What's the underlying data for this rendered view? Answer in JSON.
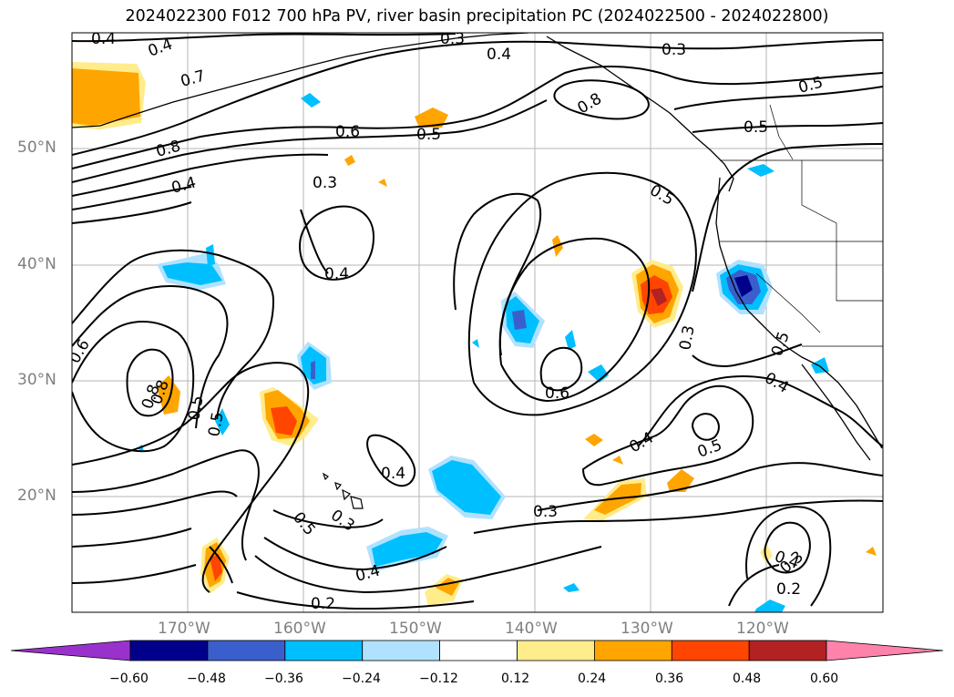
{
  "title": "2024022300 F012 700 hPa PV, river basin precipitation PC (2024022500 - 2024022800)",
  "latitude_labels": [
    "50°N",
    "40°N",
    "30°N",
    "20°N"
  ],
  "longitude_labels": [
    "170°W",
    "160°W",
    "150°W",
    "140°W",
    "130°W",
    "120°W"
  ],
  "contour_labels": [
    "0.4",
    "0.4",
    "0.3",
    "0.4",
    "0.3",
    "0.7",
    "0.8",
    "0.5",
    "0.6",
    "0.5",
    "0.5",
    "0.8",
    "0.4",
    "0.3",
    "0.5",
    "0.4",
    "0.6",
    "0.8",
    "0.5",
    "0.3",
    "0.6",
    "0.5",
    "0.4",
    "0.5",
    "0.4",
    "0.5",
    "0.3",
    "0.4",
    "0.5",
    "0.4",
    "0.3",
    "0.2",
    "0.4",
    "0.3",
    "0.2",
    "0.8"
  ],
  "colorbar": {
    "ticks": [
      "−0.60",
      "−0.48",
      "−0.36",
      "−0.24",
      "−0.12",
      "0.12",
      "0.24",
      "0.36",
      "0.48",
      "0.60"
    ],
    "colors": [
      "#9932cc",
      "#00008b",
      "#3a5fcd",
      "#00bfff",
      "#b0e2ff",
      "#ffffff",
      "#ffec8b",
      "#ffa500",
      "#ff4500",
      "#b22222",
      "#ff82ab"
    ],
    "extend": "both"
  }
}
